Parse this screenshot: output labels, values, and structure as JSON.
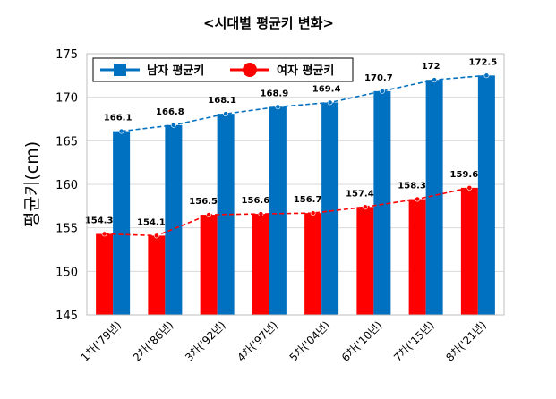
{
  "chart_data": {
    "type": "bar",
    "title": "<시대별 평균키 변화>",
    "ylabel": "평균키(cm)",
    "xlabel": "",
    "categories": [
      "1차('79년)",
      "2차('86년)",
      "3차('92년)",
      "4차('97년)",
      "5차('04년)",
      "6차('10년)",
      "7차('15년)",
      "8차('21년)"
    ],
    "ylim": [
      145,
      175
    ],
    "yticks": [
      145,
      150,
      155,
      160,
      165,
      170,
      175
    ],
    "grid": true,
    "legend_position": "top-left",
    "series": [
      {
        "name": "남자 평균키",
        "color": "#0070C0",
        "values": [
          166.1,
          166.8,
          168.1,
          168.9,
          169.4,
          170.7,
          172,
          172.5
        ],
        "labels": [
          "166.1",
          "166.8",
          "168.1",
          "168.9",
          "169.4",
          "170.7",
          "172",
          "172.5"
        ]
      },
      {
        "name": "여자 평균키",
        "color": "#FF0000",
        "values": [
          154.3,
          154.1,
          156.5,
          156.6,
          156.7,
          157.4,
          158.3,
          159.6
        ],
        "labels": [
          "154.3",
          "154.1",
          "156.5",
          "156.6",
          "156.7",
          "157.4",
          "158.3",
          "159.6"
        ]
      }
    ]
  }
}
